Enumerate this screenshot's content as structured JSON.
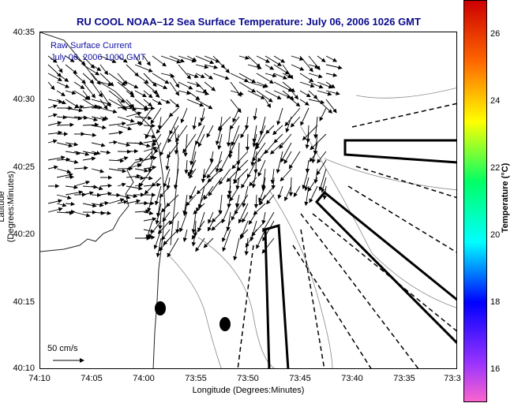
{
  "title": "RU COOL  NOAA–12  Sea Surface Temperature:  July 06, 2006 1026 GMT",
  "legend": {
    "line1": "Raw Surface Current",
    "line2": "July 06, 2006 1000 GMT"
  },
  "axes": {
    "xlabel": "Longitude (Degrees:Minutes)",
    "ylabel": "Latitude (Degrees:Minutes)",
    "x_ticks": [
      "74:10",
      "74:05",
      "74:00",
      "73:55",
      "73:50",
      "73:45",
      "73:40",
      "73:35",
      "73:3"
    ],
    "y_ticks": [
      "40:35",
      "40:30",
      "40:25",
      "40:20",
      "40:15",
      "40:10"
    ]
  },
  "scale": {
    "label": "50 cm/s"
  },
  "colorbar": {
    "label": "Temperature (°C)",
    "ticks": [
      "26",
      "24",
      "22",
      "20",
      "18",
      "16"
    ],
    "range": [
      15,
      27
    ]
  },
  "colors": {
    "title": "#0a0a8c",
    "legend_text": "#1010a0",
    "arrows": "#000000",
    "contours": "#777777"
  }
}
